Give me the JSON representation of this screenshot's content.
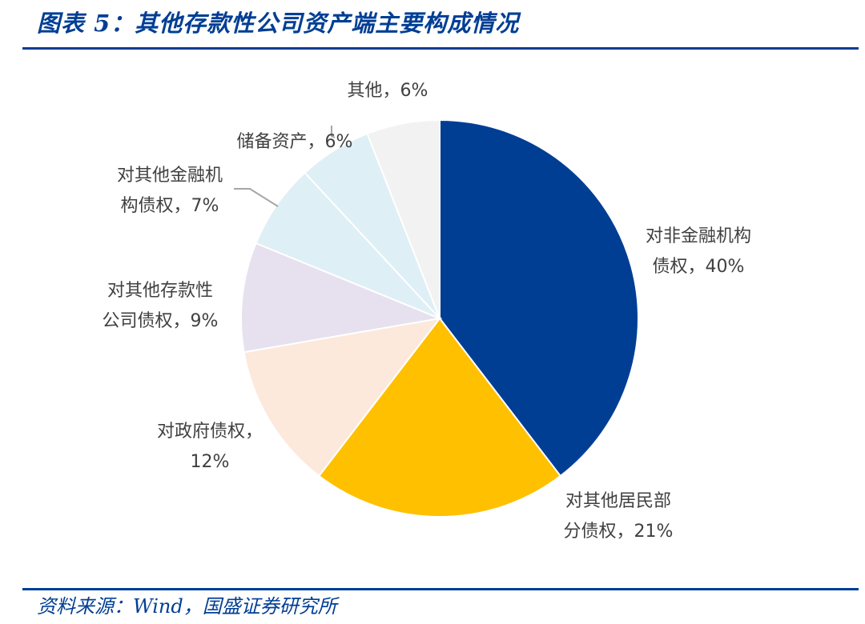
{
  "title": "图表 5：其他存款性公司资产端主要构成情况",
  "source": "资料来源：Wind，国盛证券研究所",
  "colors": {
    "brand": "#003E94",
    "label_text": "#404040",
    "leader_line": "#A6A6A6"
  },
  "chart_data": {
    "type": "pie",
    "title": "",
    "slices": [
      {
        "name": "对非金融机构债权",
        "value": 40,
        "color": "#003E94",
        "label_lines": [
          "对非金融机构",
          "债权，40%"
        ]
      },
      {
        "name": "对其他居民部分债权",
        "value": 21,
        "color": "#FFC000",
        "label_lines": [
          "对其他居民部",
          "分债权，21%"
        ]
      },
      {
        "name": "对政府债权",
        "value": 12,
        "color": "#FCE9DC",
        "label_lines": [
          "对政府债权，",
          "12%"
        ]
      },
      {
        "name": "对其他存款性公司债权",
        "value": 9,
        "color": "#E7E1EF",
        "label_lines": [
          "对其他存款性",
          "公司债权，9%"
        ]
      },
      {
        "name": "对其他金融机构债权",
        "value": 7,
        "color": "#DEEFF5",
        "label_lines": [
          "对其他金融机",
          "构债权，7%"
        ]
      },
      {
        "name": "储备资产",
        "value": 6,
        "color": "#DEEFF5",
        "label_lines": [
          "储备资产，6%"
        ]
      },
      {
        "name": "其他",
        "value": 6,
        "color": "#F2F2F2",
        "label_lines": [
          "其他，6%"
        ]
      }
    ]
  }
}
